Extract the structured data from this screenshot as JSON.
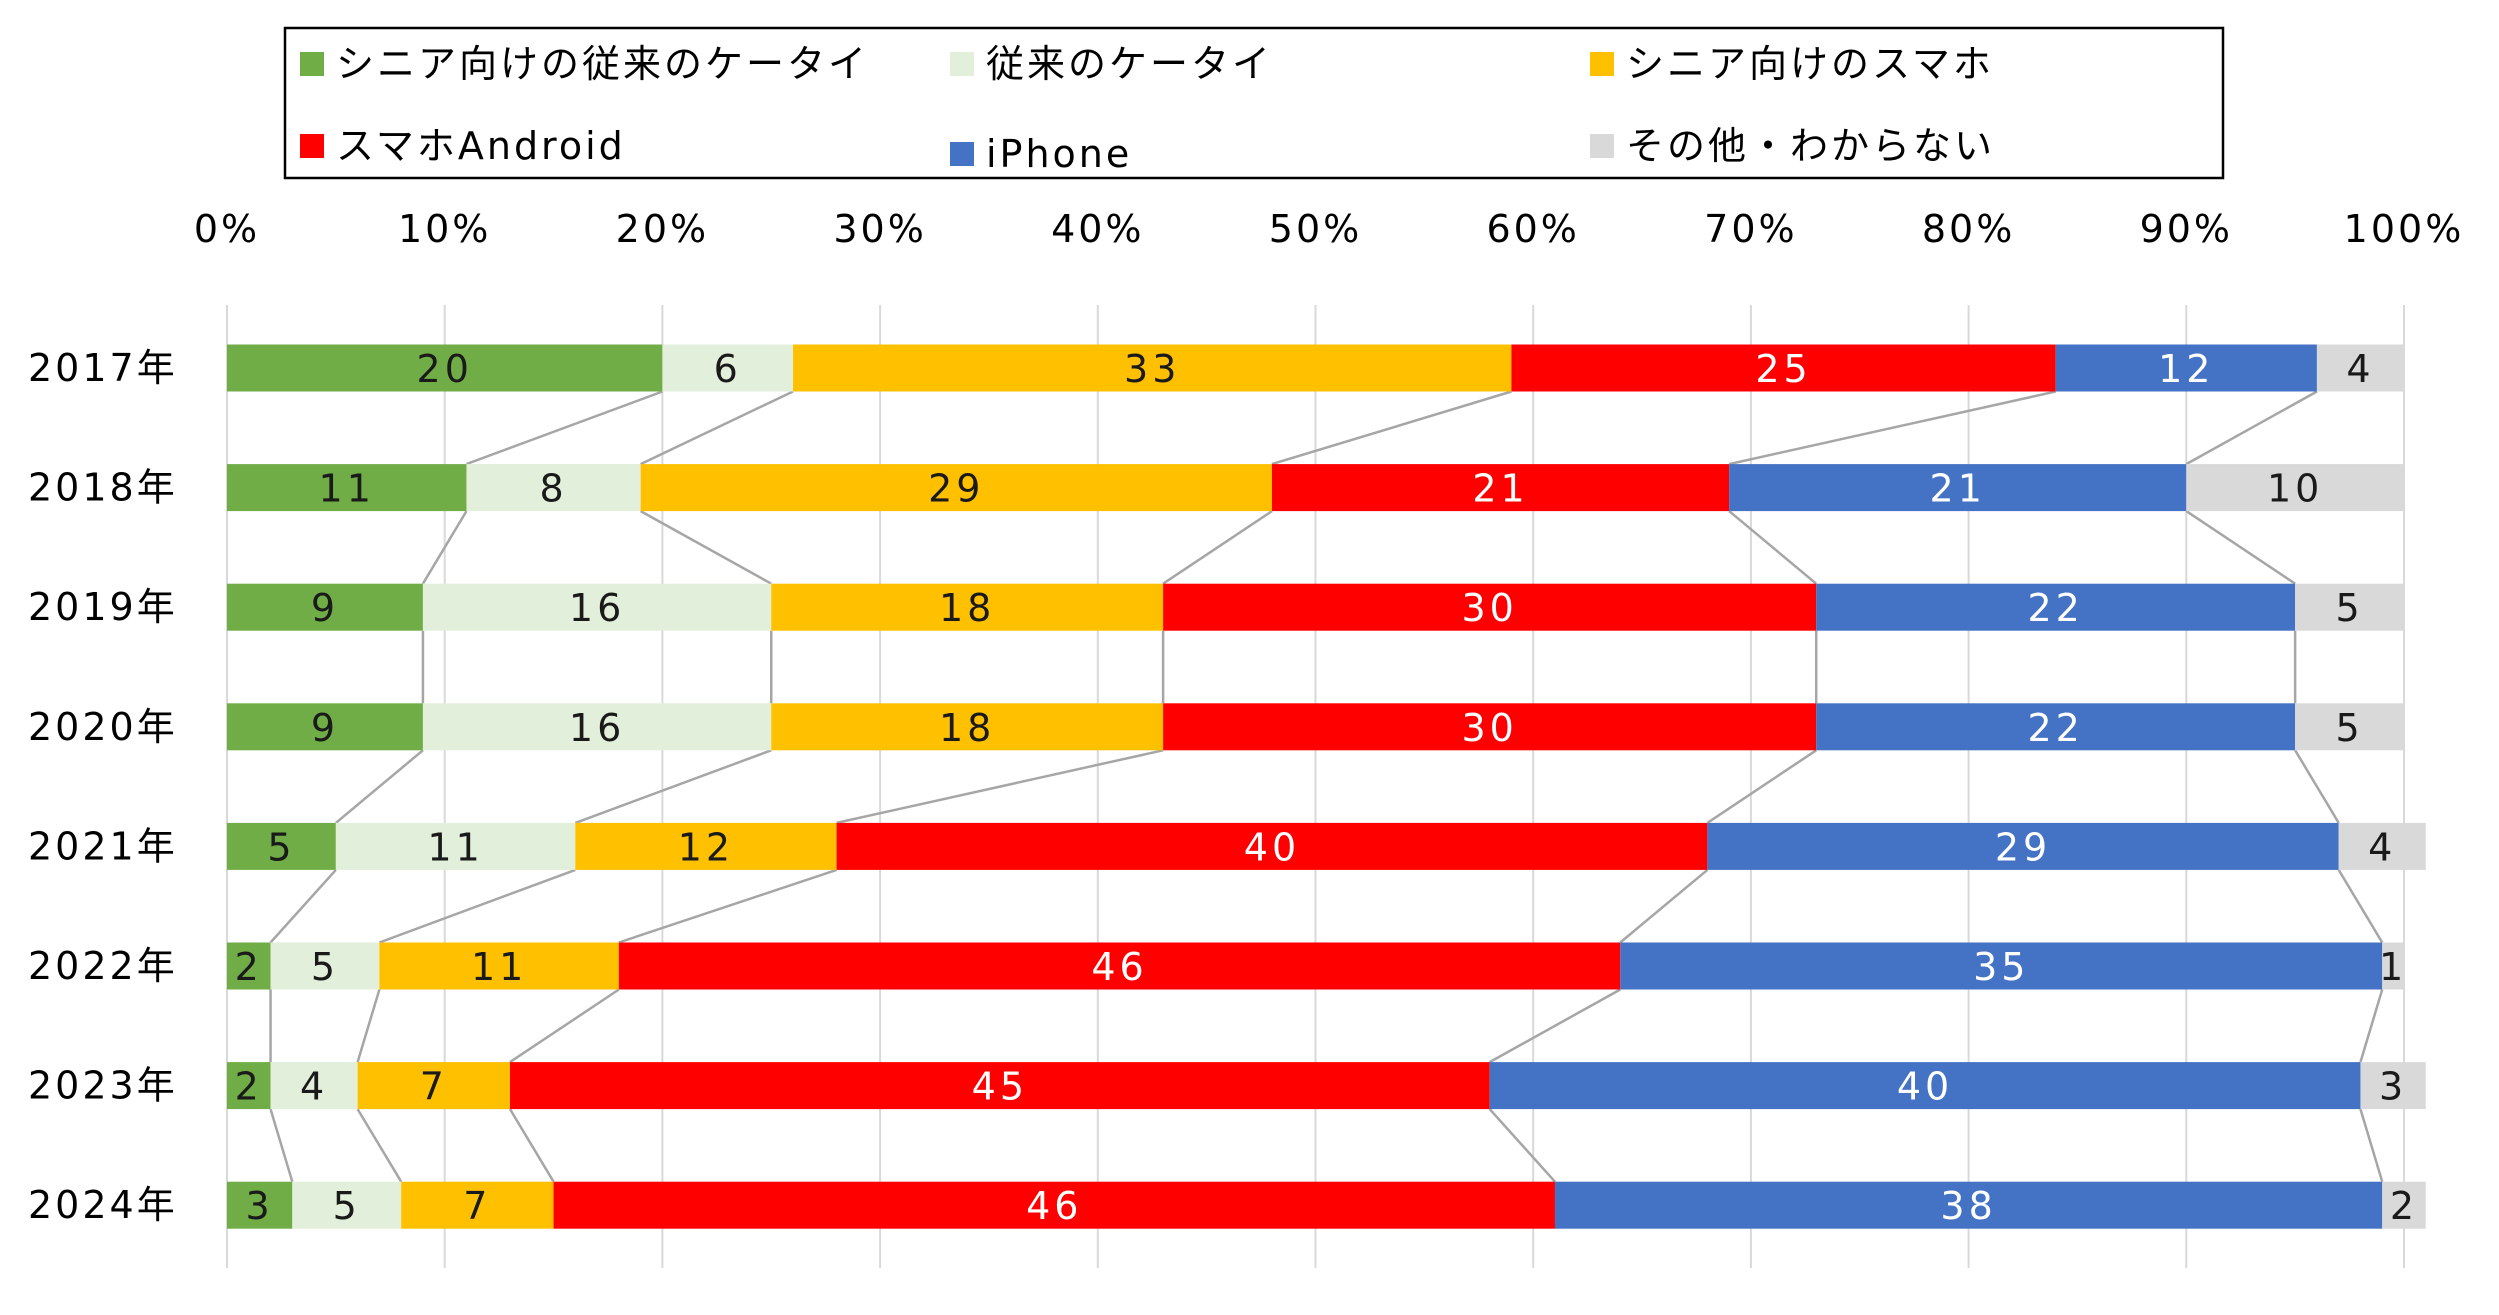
{
  "chart_data": {
    "type": "bar",
    "orientation": "horizontal",
    "stacked": "percent",
    "title": "",
    "xlabel": "",
    "ylabel": "",
    "xlim": [
      0,
      100
    ],
    "xticks": [
      "0%",
      "10%",
      "20%",
      "30%",
      "40%",
      "50%",
      "60%",
      "70%",
      "80%",
      "90%",
      "100%"
    ],
    "grid": "vertical",
    "series_connector_lines": true,
    "legend_position": "top",
    "categories": [
      "2017年",
      "2018年",
      "2019年",
      "2020年",
      "2021年",
      "2022年",
      "2023年",
      "2024年"
    ],
    "series": [
      {
        "name": "シニア向けの従来のケータイ",
        "color": "#70AD47",
        "label_color": "#1a1a1a",
        "values": [
          20,
          11,
          9,
          9,
          5,
          2,
          2,
          3
        ]
      },
      {
        "name": "従来のケータイ",
        "color": "#E2EFDA",
        "label_color": "#1a1a1a",
        "values": [
          6,
          8,
          16,
          16,
          11,
          5,
          4,
          5
        ]
      },
      {
        "name": "シニア向けのスマホ",
        "color": "#FFC000",
        "label_color": "#1a1a1a",
        "values": [
          33,
          29,
          18,
          18,
          12,
          11,
          7,
          7
        ]
      },
      {
        "name": "スマホAndroid",
        "color": "#FF0000",
        "label_color": "#ffffff",
        "values": [
          25,
          21,
          30,
          30,
          40,
          46,
          45,
          46
        ]
      },
      {
        "name": "iPhone",
        "color": "#4472C4",
        "label_color": "#ffffff",
        "values": [
          12,
          21,
          22,
          22,
          29,
          35,
          40,
          38
        ]
      },
      {
        "name": "その他・わからない",
        "color": "#D9D9D9",
        "label_color": "#1a1a1a",
        "values": [
          4,
          10,
          5,
          5,
          4,
          1,
          3,
          2
        ]
      }
    ]
  }
}
